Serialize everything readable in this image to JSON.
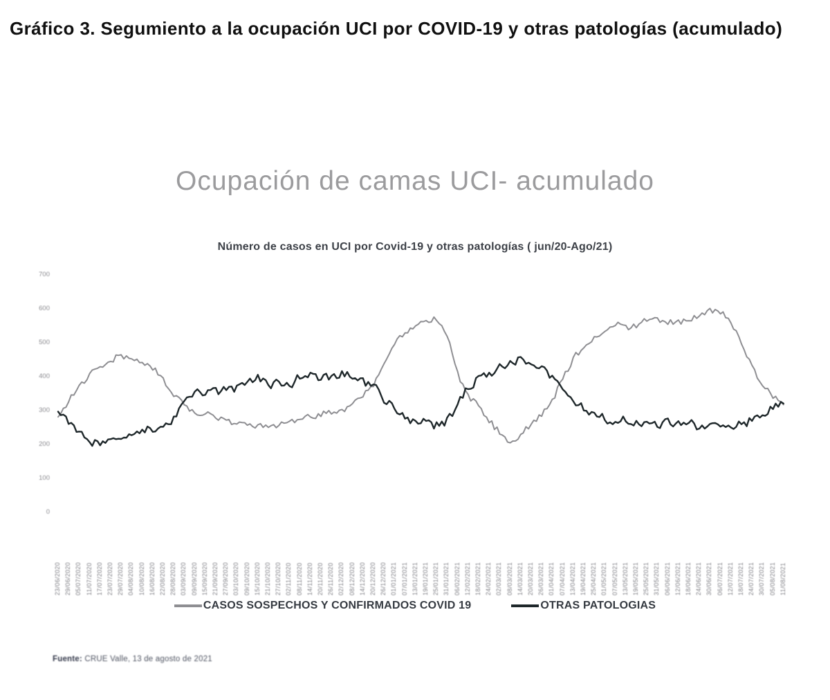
{
  "page": {
    "heading": "Gráfico 3. Segumiento a la ocupación UCI por COVID-19 y otras patologías (acumulado)",
    "source_label": "Fuente:",
    "source_text": " CRUE Valle, 13 de agosto de 2021"
  },
  "chart": {
    "title": "Ocupación de camas UCI- acumulado",
    "subtitle": "Número de casos en UCI por Covid-19 y otras patologías ( jun/20-Ago/21)"
  },
  "chart_data": {
    "type": "line",
    "title": "Ocupación de camas UCI- acumulado",
    "subtitle": "Número de casos en UCI por Covid-19 y otras patologías ( jun/20-Ago/21)",
    "xlabel": "",
    "ylabel": "",
    "ylim": [
      0,
      700
    ],
    "yticks": [
      0,
      100,
      200,
      300,
      400,
      500,
      600,
      700
    ],
    "grid": false,
    "legend_position": "bottom",
    "categories": [
      "23/06/2020",
      "29/06/2020",
      "05/07/2020",
      "11/07/2020",
      "17/07/2020",
      "23/07/2020",
      "29/07/2020",
      "04/08/2020",
      "10/08/2020",
      "16/08/2020",
      "22/08/2020",
      "28/08/2020",
      "03/09/2020",
      "09/09/2020",
      "15/09/2020",
      "21/09/2020",
      "27/09/2020",
      "03/10/2020",
      "09/10/2020",
      "15/10/2020",
      "21/10/2020",
      "27/10/2020",
      "02/11/2020",
      "08/11/2020",
      "14/11/2020",
      "20/11/2020",
      "26/11/2020",
      "02/12/2020",
      "08/12/2020",
      "14/12/2020",
      "20/12/2020",
      "26/12/2020",
      "01/01/2021",
      "07/01/2021",
      "13/01/2021",
      "19/01/2021",
      "25/01/2021",
      "31/01/2021",
      "06/02/2021",
      "12/02/2021",
      "18/02/2021",
      "24/02/2021",
      "02/03/2021",
      "08/03/2021",
      "14/03/2021",
      "20/03/2021",
      "26/03/2021",
      "01/04/2021",
      "07/04/2021",
      "13/04/2021",
      "19/04/2021",
      "25/04/2021",
      "01/05/2021",
      "07/05/2021",
      "13/05/2021",
      "19/05/2021",
      "25/05/2021",
      "31/05/2021",
      "06/06/2021",
      "12/06/2021",
      "18/06/2021",
      "24/06/2021",
      "30/06/2021",
      "06/07/2021",
      "12/07/2021",
      "18/07/2021",
      "24/07/2021",
      "30/07/2021",
      "05/08/2021",
      "11/08/2021"
    ],
    "series": [
      {
        "name": "CASOS SOSPECHOS Y CONFIRMADOS COVID 19",
        "color": "#8e8e92",
        "values": [
          285,
          330,
          375,
          405,
          428,
          448,
          462,
          452,
          440,
          425,
          395,
          345,
          315,
          298,
          290,
          282,
          270,
          262,
          258,
          255,
          252,
          258,
          265,
          272,
          282,
          288,
          295,
          300,
          322,
          342,
          372,
          440,
          500,
          530,
          548,
          562,
          568,
          520,
          410,
          345,
          310,
          270,
          235,
          200,
          230,
          262,
          288,
          330,
          390,
          455,
          490,
          515,
          535,
          552,
          548,
          545,
          568,
          572,
          558,
          562,
          570,
          578,
          598,
          590,
          558,
          498,
          430,
          378,
          338,
          320
        ]
      },
      {
        "name": "OTRAS PATOLOGIAS",
        "color": "#1e272a",
        "values": [
          300,
          268,
          232,
          208,
          200,
          212,
          222,
          230,
          242,
          240,
          252,
          275,
          330,
          355,
          350,
          362,
          358,
          370,
          378,
          400,
          375,
          385,
          372,
          398,
          415,
          390,
          402,
          412,
          398,
          388,
          380,
          330,
          305,
          282,
          268,
          262,
          258,
          272,
          315,
          365,
          395,
          410,
          430,
          440,
          450,
          430,
          435,
          400,
          355,
          335,
          305,
          290,
          275,
          265,
          272,
          262,
          268,
          255,
          270,
          262,
          265,
          252,
          258,
          245,
          252,
          258,
          268,
          288,
          308,
          325
        ]
      }
    ]
  }
}
